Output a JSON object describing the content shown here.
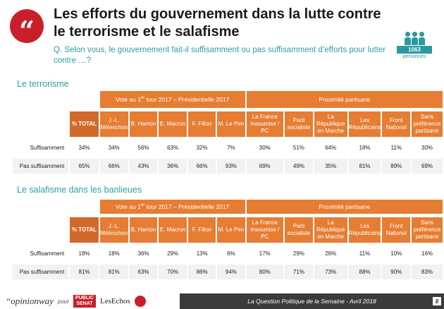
{
  "header": {
    "quote_glyph": "“",
    "title": "Les efforts du gouvernement dans la lutte contre le terrorisme et le salafisme",
    "question": "Q. Selon vous, le gouvernement fait-il suffisamment ou pas suffisamment d’efforts pour lutter contre …?",
    "sample_count": "1063",
    "sample_label": "personnes"
  },
  "group_headers": {
    "vote_prefix": "Vote au 1",
    "vote_sup": "er",
    "vote_suffix": " tour 2017 – Présidentielle 2017",
    "proximity": "Proximité partisane"
  },
  "columns": [
    "% TOTAL",
    "J.-L. Mélenchon",
    "B. Hamon",
    "E. Macron",
    "F. Fillon",
    "M. Le Pen",
    "La France Insoumise / PC",
    "Parti socialiste",
    "La République en Marche",
    "Les Républicains",
    "Front National",
    "Sans préférence partisane"
  ],
  "sections": [
    {
      "title": "Le terrorisme",
      "rows": [
        {
          "label": "Suffisamment",
          "values": [
            "34%",
            "34%",
            "56%",
            "63%",
            "32%",
            "7%",
            "30%",
            "51%",
            "64%",
            "18%",
            "11%",
            "30%"
          ]
        },
        {
          "label": "Pas suffisamment",
          "values": [
            "65%",
            "66%",
            "43%",
            "36%",
            "66%",
            "93%",
            "69%",
            "49%",
            "35%",
            "81%",
            "89%",
            "69%"
          ]
        }
      ]
    },
    {
      "title": "Le salafisme dans les banlieues",
      "rows": [
        {
          "label": "Suffisamment",
          "values": [
            "18%",
            "18%",
            "36%",
            "29%",
            "13%",
            "6%",
            "17%",
            "29%",
            "26%",
            "11%",
            "10%",
            "16%"
          ]
        },
        {
          "label": "Pas suffisamment",
          "values": [
            "81%",
            "81%",
            "63%",
            "70%",
            "86%",
            "94%",
            "80%",
            "71%",
            "73%",
            "88%",
            "90%",
            "83%"
          ]
        }
      ]
    }
  ],
  "footer": {
    "brand_quote": "“",
    "brand": "opinionway",
    "pour": "pour",
    "partner1_line1": "PUBLIC",
    "partner1_line2": "SENAT",
    "partner2": "LesEchos",
    "caption": "La Question Politique de la Semaine - Avril 2018",
    "page": "8"
  },
  "colors": {
    "accent_red": "#c8202a",
    "teal": "#2f9ea3",
    "orange": "#e67d32",
    "footer_dark": "#3b3b3b"
  }
}
